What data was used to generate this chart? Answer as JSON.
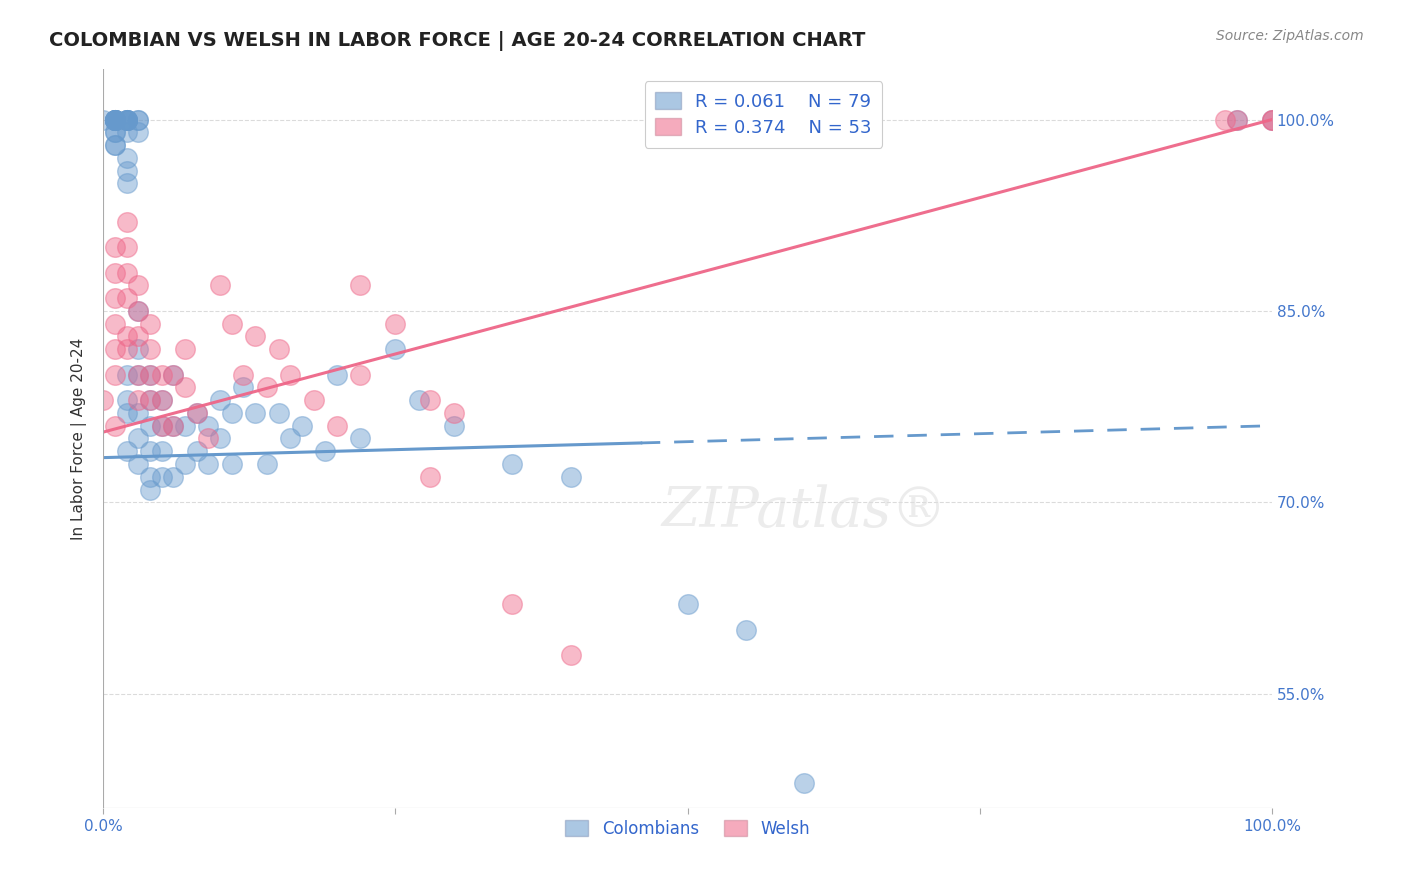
{
  "title": "COLOMBIAN VS WELSH IN LABOR FORCE | AGE 20-24 CORRELATION CHART",
  "source": "Source: ZipAtlas.com",
  "ylabel": "In Labor Force | Age 20-24",
  "xlim": [
    0.0,
    1.0
  ],
  "ylim": [
    0.46,
    1.04
  ],
  "xtick_labels": [
    "0.0%",
    "100.0%"
  ],
  "xtick_positions": [
    0.0,
    1.0
  ],
  "ytick_labels": [
    "55.0%",
    "70.0%",
    "85.0%",
    "100.0%"
  ],
  "ytick_positions": [
    0.55,
    0.7,
    0.85,
    1.0
  ],
  "grid_color": "#cccccc",
  "background_color": "#ffffff",
  "colombian_color": "#6699cc",
  "welsh_color": "#ee6688",
  "colombian_R": 0.061,
  "colombian_N": 79,
  "welsh_R": 0.374,
  "welsh_N": 53,
  "watermark": "ZIPatlas®",
  "colombian_x": [
    0.0,
    0.01,
    0.01,
    0.01,
    0.01,
    0.01,
    0.01,
    0.01,
    0.01,
    0.01,
    0.01,
    0.01,
    0.01,
    0.01,
    0.02,
    0.02,
    0.02,
    0.02,
    0.02,
    0.02,
    0.02,
    0.02,
    0.02,
    0.02,
    0.02,
    0.02,
    0.02,
    0.02,
    0.03,
    0.03,
    0.03,
    0.03,
    0.03,
    0.03,
    0.03,
    0.03,
    0.03,
    0.04,
    0.04,
    0.04,
    0.04,
    0.04,
    0.04,
    0.05,
    0.05,
    0.05,
    0.05,
    0.06,
    0.06,
    0.06,
    0.07,
    0.07,
    0.08,
    0.08,
    0.09,
    0.09,
    0.1,
    0.1,
    0.11,
    0.11,
    0.12,
    0.13,
    0.14,
    0.15,
    0.16,
    0.17,
    0.19,
    0.2,
    0.22,
    0.25,
    0.27,
    0.3,
    0.35,
    0.4,
    0.5,
    0.55,
    0.6,
    0.97,
    1.0
  ],
  "colombian_y": [
    1.0,
    1.0,
    1.0,
    1.0,
    1.0,
    1.0,
    1.0,
    1.0,
    1.0,
    1.0,
    0.99,
    0.99,
    0.98,
    0.98,
    1.0,
    1.0,
    1.0,
    1.0,
    1.0,
    1.0,
    0.99,
    0.97,
    0.96,
    0.95,
    0.8,
    0.78,
    0.77,
    0.74,
    1.0,
    1.0,
    0.99,
    0.85,
    0.82,
    0.8,
    0.77,
    0.75,
    0.73,
    0.8,
    0.78,
    0.76,
    0.74,
    0.72,
    0.71,
    0.78,
    0.76,
    0.74,
    0.72,
    0.8,
    0.76,
    0.72,
    0.76,
    0.73,
    0.77,
    0.74,
    0.76,
    0.73,
    0.78,
    0.75,
    0.77,
    0.73,
    0.79,
    0.77,
    0.73,
    0.77,
    0.75,
    0.76,
    0.74,
    0.8,
    0.75,
    0.82,
    0.78,
    0.76,
    0.73,
    0.72,
    0.62,
    0.6,
    0.48,
    1.0,
    1.0
  ],
  "welsh_x": [
    0.0,
    0.01,
    0.01,
    0.01,
    0.01,
    0.01,
    0.01,
    0.01,
    0.02,
    0.02,
    0.02,
    0.02,
    0.02,
    0.02,
    0.03,
    0.03,
    0.03,
    0.03,
    0.03,
    0.04,
    0.04,
    0.04,
    0.04,
    0.05,
    0.05,
    0.05,
    0.06,
    0.06,
    0.07,
    0.07,
    0.08,
    0.09,
    0.1,
    0.11,
    0.12,
    0.13,
    0.14,
    0.15,
    0.16,
    0.18,
    0.2,
    0.22,
    0.25,
    0.28,
    0.3,
    0.35,
    0.4,
    0.22,
    0.28,
    0.96,
    0.97,
    1.0,
    1.0
  ],
  "welsh_y": [
    0.78,
    0.9,
    0.88,
    0.86,
    0.84,
    0.82,
    0.8,
    0.76,
    0.92,
    0.9,
    0.88,
    0.86,
    0.83,
    0.82,
    0.87,
    0.85,
    0.83,
    0.8,
    0.78,
    0.84,
    0.82,
    0.8,
    0.78,
    0.8,
    0.78,
    0.76,
    0.8,
    0.76,
    0.82,
    0.79,
    0.77,
    0.75,
    0.87,
    0.84,
    0.8,
    0.83,
    0.79,
    0.82,
    0.8,
    0.78,
    0.76,
    0.8,
    0.84,
    0.78,
    0.77,
    0.62,
    0.58,
    0.87,
    0.72,
    1.0,
    1.0,
    1.0,
    1.0
  ]
}
